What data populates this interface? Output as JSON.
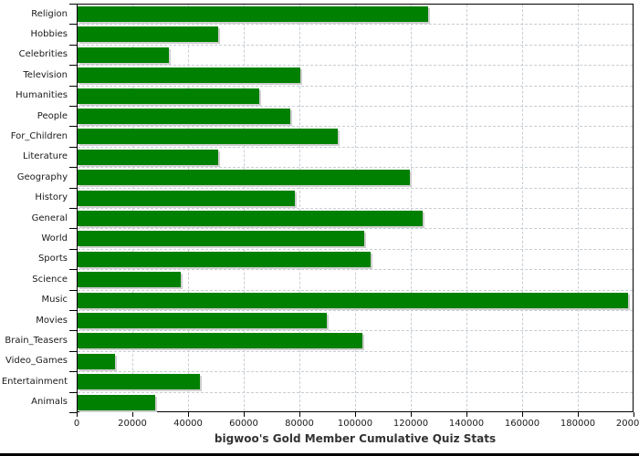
{
  "chart": {
    "bar_color": "#008000",
    "bar_shadow_color": "#cfcfcf",
    "grid_color": "#c8ced4",
    "axis_color": "#000000",
    "title_color": "#333333",
    "x_tick_labels": [
      "0",
      "20000",
      "40000",
      "60000",
      "80000",
      "100000",
      "120000",
      "140000",
      "160000",
      "180000",
      "200000"
    ]
  },
  "chart_data": {
    "type": "bar",
    "orientation": "horizontal",
    "title": "bigwoo's Gold Member Cumulative Quiz Stats",
    "title_position": "bottom",
    "xlabel": "",
    "ylabel": "",
    "xlim": [
      0,
      200000
    ],
    "x_tick_step": 20000,
    "grid": "both-dashed",
    "legend": "none",
    "categories": [
      "Religion",
      "Hobbies",
      "Celebrities",
      "Television",
      "Humanities",
      "People",
      "For_Children",
      "Literature",
      "Geography",
      "History",
      "General",
      "World",
      "Sports",
      "Science",
      "Music",
      "Movies",
      "Brain_Teasers",
      "Video_Games",
      "Entertainment",
      "Animals"
    ],
    "values": [
      126000,
      50500,
      33000,
      80000,
      65500,
      76500,
      93500,
      50500,
      119500,
      78000,
      124000,
      103000,
      105500,
      37000,
      198000,
      89500,
      102500,
      13500,
      44000,
      28000
    ]
  }
}
